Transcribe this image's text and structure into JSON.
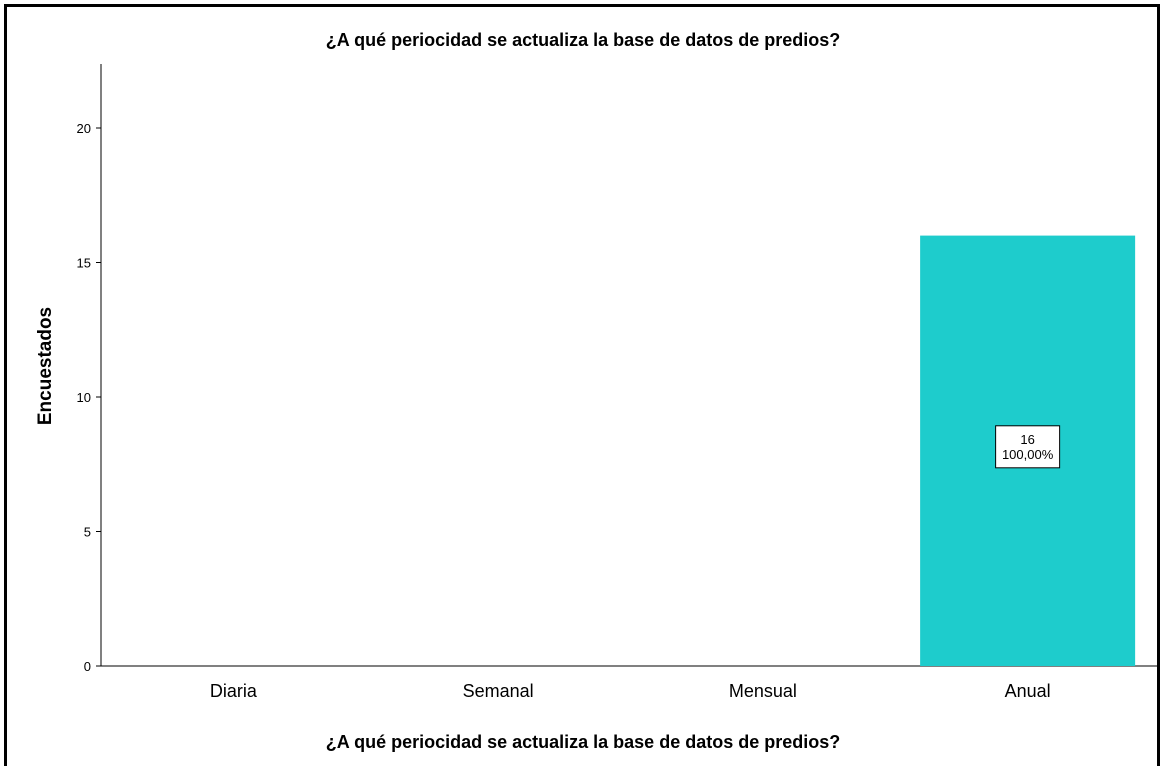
{
  "chart_data": {
    "type": "bar",
    "title": "¿A qué periocidad se actualiza la base de datos de predios?",
    "xlabel": "¿A qué periocidad se actualiza la base de datos de predios?",
    "ylabel": "Encuestados",
    "categories": [
      "Diaria",
      "Semanal",
      "Mensual",
      "Anual"
    ],
    "values": [
      0,
      0,
      0,
      16
    ],
    "data_labels": [
      {
        "category": "Anual",
        "count": "16",
        "percent": "100,00%"
      }
    ],
    "ylim": [
      0,
      22
    ],
    "yticks": [
      0,
      5,
      10,
      15,
      20
    ],
    "grid": false,
    "bar_color": "#1ecccc"
  }
}
